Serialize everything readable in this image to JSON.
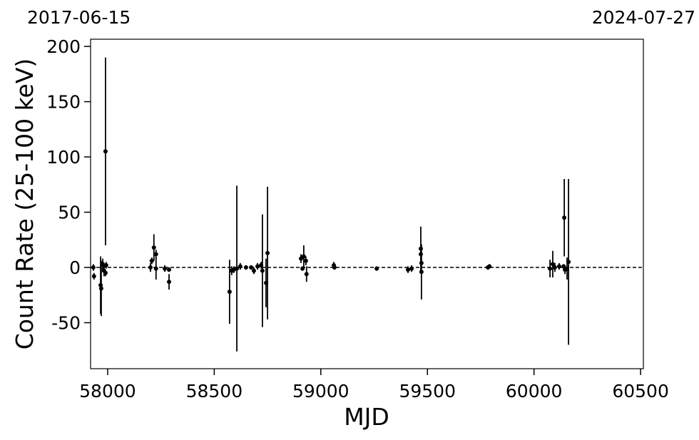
{
  "chart_data": {
    "type": "scatter",
    "xlabel": "MJD",
    "ylabel": "Count Rate (25-100 keV)",
    "annotations": [
      "2017-06-15",
      "2024-07-27"
    ],
    "xlim": [
      57920,
      60513
    ],
    "ylim": [
      -91.6,
      206.5
    ],
    "xticks": [
      58000,
      58500,
      59000,
      59500,
      60000,
      60500
    ],
    "yticks": [
      -50,
      0,
      50,
      100,
      150,
      200
    ],
    "hline": 0,
    "color": "#000000",
    "series": [
      {
        "x": [
          57933,
          57936,
          57967,
          57970,
          57977,
          57983,
          57990,
          57993,
          57990,
          58207,
          58217,
          58227,
          58227,
          58201,
          58268,
          58288,
          58288,
          58572,
          58582,
          58592,
          58606,
          58622,
          58649,
          58673,
          58686,
          58703,
          58720,
          58726,
          58743,
          58750,
          58907,
          58920,
          58930,
          58933,
          58914,
          59061,
          59064,
          59262,
          59409,
          59426,
          59469,
          59469,
          59472,
          59472,
          59784,
          59791,
          60075,
          60088,
          60098,
          60118,
          60139,
          60142,
          60145,
          60162,
          60155
        ],
        "values": [
          0,
          -8,
          -16,
          -19,
          3,
          -3,
          105,
          2,
          -5,
          6,
          18,
          12,
          -1,
          0,
          -1,
          -13,
          -2,
          -22,
          -3,
          -2,
          -1,
          1,
          0,
          0,
          -3,
          1,
          2,
          -3,
          -14,
          13,
          8,
          10,
          6,
          -6,
          -1,
          2,
          0,
          -1,
          -2,
          -1,
          17,
          12,
          -4,
          4,
          0,
          1,
          -1,
          3,
          0,
          1,
          1,
          45,
          -2,
          5,
          -1
        ],
        "errors": [
          3,
          3,
          26,
          25,
          5,
          5,
          85,
          3,
          3,
          3,
          12,
          4,
          10,
          4,
          3,
          7,
          2,
          29,
          4,
          3,
          75,
          3,
          2,
          2,
          3,
          3,
          3,
          51,
          22,
          60,
          4,
          10,
          4,
          7,
          2,
          3,
          2,
          2,
          3,
          3,
          20,
          5,
          25,
          3,
          2,
          2,
          8,
          12,
          4,
          3,
          2,
          35,
          4,
          75,
          10
        ]
      }
    ]
  }
}
